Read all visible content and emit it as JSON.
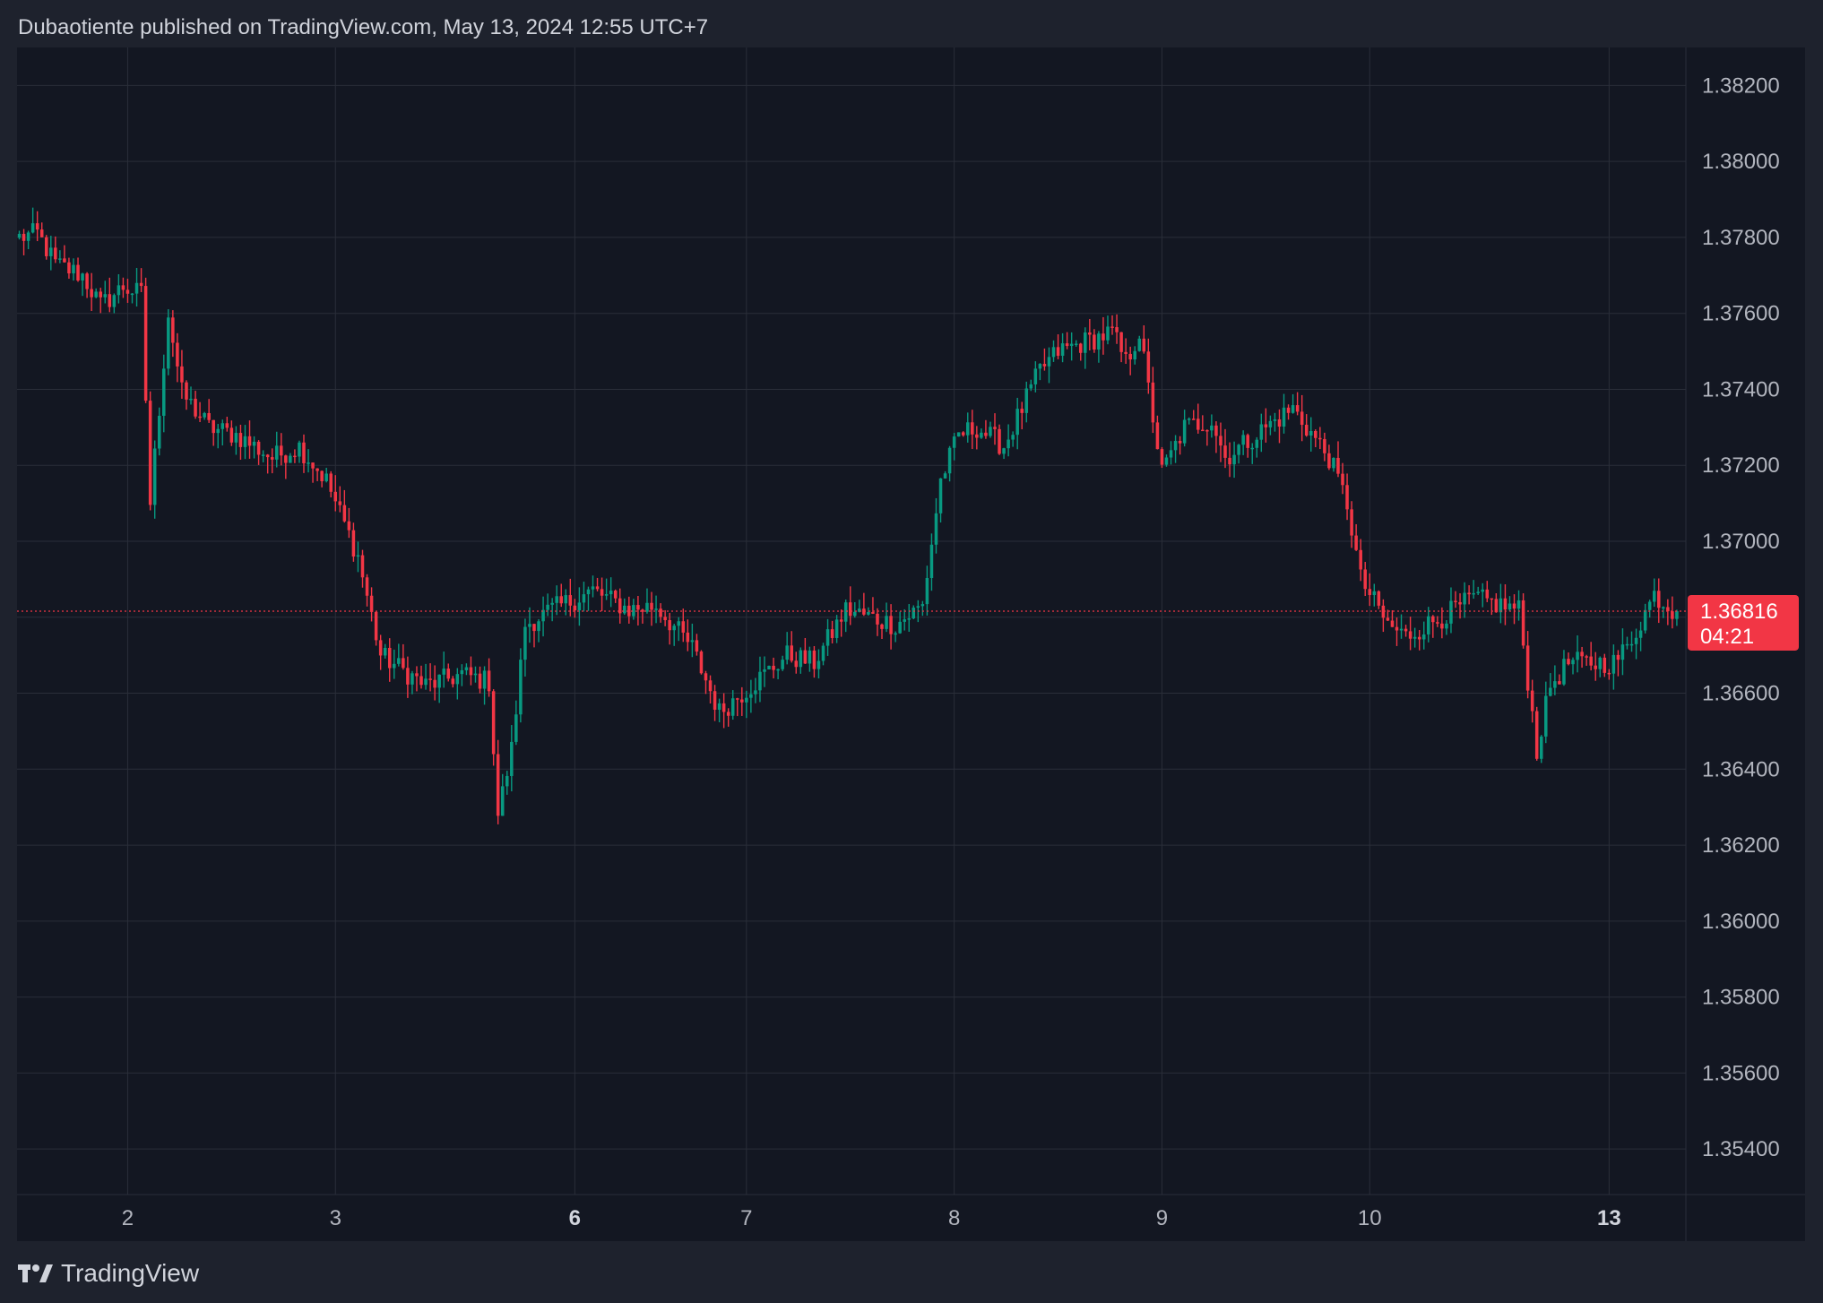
{
  "header": {
    "text": "Dubaotiente published on TradingView.com, May 13, 2024 12:55 UTC+7"
  },
  "footer": {
    "brand": "TradingView"
  },
  "colors": {
    "background": "#131722",
    "frame": "#1e222d",
    "up": "#089981",
    "down": "#f23645",
    "grid": "#2a2e39",
    "text": "#b2b5be"
  },
  "chart_data": {
    "type": "candlestick",
    "price_axis": {
      "ticks": [
        1.382,
        1.38,
        1.378,
        1.376,
        1.374,
        1.372,
        1.37,
        1.368,
        1.366,
        1.364,
        1.362,
        1.36,
        1.358,
        1.356,
        1.354
      ],
      "tick_labels": [
        "1.38200",
        "1.38000",
        "1.37800",
        "1.37600",
        "1.37400",
        "1.37200",
        "1.37000",
        "",
        "1.36600",
        "1.36400",
        "1.36200",
        "1.36000",
        "1.35800",
        "1.35600",
        "1.35400"
      ],
      "range": [
        1.3528,
        1.383
      ]
    },
    "time_axis": {
      "labels": [
        "2",
        "3",
        "6",
        "7",
        "8",
        "9",
        "10",
        "13"
      ],
      "bold": [
        false,
        false,
        true,
        false,
        false,
        false,
        false,
        true
      ]
    },
    "last_price": {
      "value": 1.36816,
      "label": "1.36816",
      "countdown": "04:21"
    },
    "path_keypoints": [
      [
        0,
        1.378
      ],
      [
        4,
        1.3781
      ],
      [
        8,
        1.3773
      ],
      [
        14,
        1.377
      ],
      [
        18,
        1.3762
      ],
      [
        23,
        1.3767
      ],
      [
        27,
        1.3765
      ],
      [
        29,
        1.371
      ],
      [
        33,
        1.376
      ],
      [
        36,
        1.3739
      ],
      [
        42,
        1.373
      ],
      [
        48,
        1.3728
      ],
      [
        56,
        1.3722
      ],
      [
        62,
        1.3725
      ],
      [
        68,
        1.3716
      ],
      [
        75,
        1.3696
      ],
      [
        80,
        1.367
      ],
      [
        90,
        1.3662
      ],
      [
        98,
        1.3665
      ],
      [
        104,
        1.3663
      ],
      [
        106,
        1.3628
      ],
      [
        109,
        1.3645
      ],
      [
        112,
        1.3678
      ],
      [
        118,
        1.3682
      ],
      [
        127,
        1.3687
      ],
      [
        135,
        1.3682
      ],
      [
        141,
        1.3683
      ],
      [
        149,
        1.3672
      ],
      [
        155,
        1.3655
      ],
      [
        160,
        1.366
      ],
      [
        170,
        1.367
      ],
      [
        176,
        1.3668
      ],
      [
        183,
        1.3682
      ],
      [
        194,
        1.3678
      ],
      [
        200,
        1.3683
      ],
      [
        204,
        1.3716
      ],
      [
        208,
        1.3728
      ],
      [
        212,
        1.373
      ],
      [
        218,
        1.3725
      ],
      [
        226,
        1.3745
      ],
      [
        230,
        1.375
      ],
      [
        242,
        1.3755
      ],
      [
        245,
        1.3747
      ],
      [
        248,
        1.3755
      ],
      [
        250,
        1.374
      ],
      [
        253,
        1.3718
      ],
      [
        258,
        1.373
      ],
      [
        264,
        1.3732
      ],
      [
        267,
        1.3722
      ],
      [
        276,
        1.373
      ],
      [
        282,
        1.3735
      ],
      [
        290,
        1.3722
      ],
      [
        294,
        1.371
      ],
      [
        297,
        1.369
      ],
      [
        303,
        1.3678
      ],
      [
        307,
        1.3675
      ],
      [
        315,
        1.368
      ],
      [
        322,
        1.3685
      ],
      [
        332,
        1.3682
      ],
      [
        336,
        1.3645
      ],
      [
        339,
        1.3662
      ],
      [
        343,
        1.3668
      ],
      [
        353,
        1.3668
      ],
      [
        356,
        1.3672
      ],
      [
        362,
        1.3686
      ],
      [
        366,
        1.3682
      ],
      [
        367,
        1.36816
      ]
    ],
    "candle_count": 368,
    "date_change_candles": [
      24,
      70,
      123,
      161,
      207,
      253,
      299,
      352
    ]
  }
}
